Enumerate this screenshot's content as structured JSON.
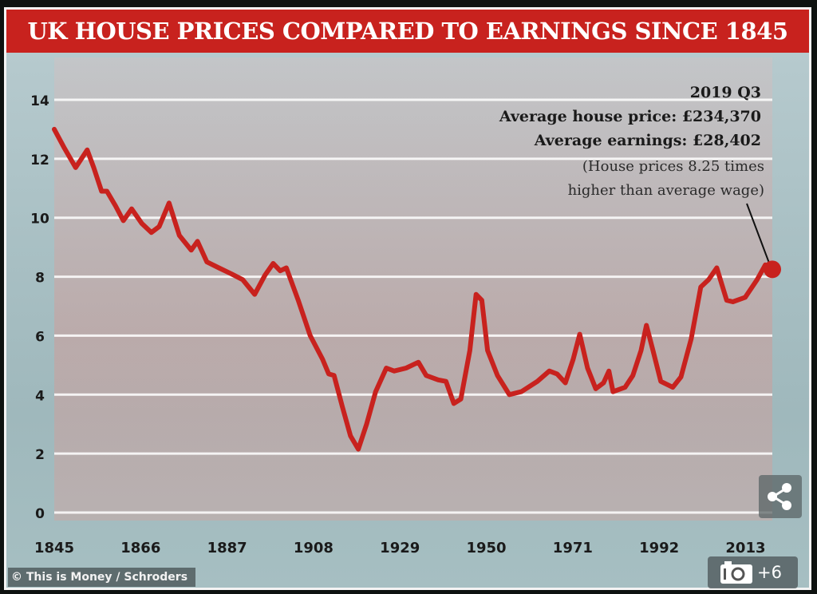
{
  "chart_data": {
    "type": "line",
    "title": "UK HOUSE PRICES COMPARED TO EARNINGS SINCE 1845",
    "xlabel": "",
    "ylabel": "",
    "xlim": [
      1845,
      2019.5
    ],
    "ylim": [
      0,
      14
    ],
    "grid": true,
    "line_color": "#c8221e",
    "x_ticks": [
      "1845",
      "1866",
      "1887",
      "1908",
      "1929",
      "1950",
      "1971",
      "1992",
      "2013"
    ],
    "y_ticks": [
      "0",
      "2",
      "4",
      "6",
      "8",
      "10",
      "12",
      "14"
    ],
    "series": [
      {
        "x": [
          1845,
          1847.3,
          1850.2,
          1853,
          1854.6,
          1856.5,
          1857.8,
          1859.9,
          1861.8,
          1863.8,
          1866.3,
          1868.6,
          1870.5,
          1872.9,
          1875.4,
          1878.3,
          1879.8,
          1882.1,
          1885,
          1888,
          1890.8,
          1893.7,
          1896.2,
          1898.2,
          1899.9,
          1901.4,
          1904.3,
          1907.2,
          1910.2,
          1911.7,
          1913,
          1915,
          1917,
          1918.9,
          1920.9,
          1923.1,
          1925.7,
          1927.6,
          1930.5,
          1933.5,
          1935.4,
          1938.3,
          1940.2,
          1942.1,
          1943.8,
          1946,
          1947.5,
          1948.9,
          1950.3,
          1952.7,
          1955.6,
          1958.5,
          1962.4,
          1965.3,
          1967.2,
          1969.2,
          1971.1,
          1972.7,
          1974.6,
          1976.6,
          1978.5,
          1979.8,
          1980.8,
          1983.7,
          1985.6,
          1987.6,
          1988.9,
          1990.5,
          1992.4,
          1995.3,
          1997.3,
          1999.8,
          2002.1,
          2004,
          2006,
          2008.4,
          2009.9,
          2012.9,
          2015.8,
          2017.8,
          2019.5
        ],
        "y": [
          13.0,
          12.4,
          11.7,
          12.3,
          11.7,
          10.9,
          10.9,
          10.4,
          9.9,
          10.3,
          9.8,
          9.5,
          9.7,
          10.5,
          9.4,
          8.9,
          9.2,
          8.5,
          8.3,
          8.1,
          7.9,
          7.4,
          8.05,
          8.45,
          8.2,
          8.3,
          7.2,
          6.0,
          5.2,
          4.7,
          4.65,
          3.6,
          2.6,
          2.15,
          3.0,
          4.1,
          4.9,
          4.8,
          4.9,
          5.1,
          4.65,
          4.5,
          4.45,
          3.7,
          3.85,
          5.5,
          7.4,
          7.2,
          5.5,
          4.65,
          4.0,
          4.1,
          4.45,
          4.8,
          4.7,
          4.4,
          5.2,
          6.05,
          4.9,
          4.2,
          4.4,
          4.8,
          4.1,
          4.25,
          4.65,
          5.5,
          6.35,
          5.5,
          4.45,
          4.25,
          4.6,
          5.9,
          7.65,
          7.9,
          8.3,
          7.2,
          7.15,
          7.3,
          7.9,
          8.4,
          8.25
        ]
      }
    ],
    "annotation": {
      "period": "2019 Q3",
      "house_price": "Average house price: £234,370",
      "earnings": "Average earnings: £28,402",
      "note_line1": "(House prices 8.25 times",
      "note_line2": "higher than average wage)",
      "x": 2019.5,
      "y": 8.25
    }
  },
  "credit": "© This is Money / Schroders",
  "controls": {
    "share_icon": "share-icon",
    "gallery_icon": "camera-icon",
    "gallery_count": "+6"
  }
}
